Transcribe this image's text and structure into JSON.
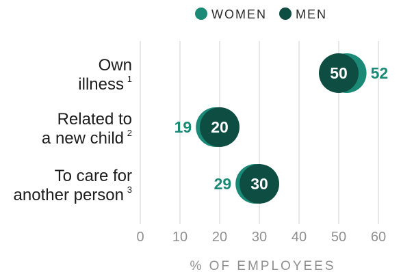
{
  "colors": {
    "women": "#1a8a76",
    "men": "#0e4d42",
    "grid": "#dcdcdc",
    "tick": "#8f8f8f"
  },
  "chart_data": {
    "type": "scatter",
    "title": "",
    "xlabel": "% OF EMPLOYEES",
    "ylabel": "",
    "xlim": [
      0,
      60
    ],
    "xticks": [
      "0",
      "10",
      "20",
      "30",
      "40",
      "50",
      "60"
    ],
    "grid": true,
    "legend_position": "top-right",
    "categories": [
      {
        "lines": [
          "Own",
          "illness"
        ],
        "sup": "1"
      },
      {
        "lines": [
          "Related to",
          "a new child"
        ],
        "sup": "2"
      },
      {
        "lines": [
          "To care for",
          "another person"
        ],
        "sup": "3"
      }
    ],
    "series": [
      {
        "name": "WOMEN",
        "values": [
          52,
          19,
          29
        ]
      },
      {
        "name": "MEN",
        "values": [
          50,
          20,
          30
        ]
      }
    ]
  }
}
